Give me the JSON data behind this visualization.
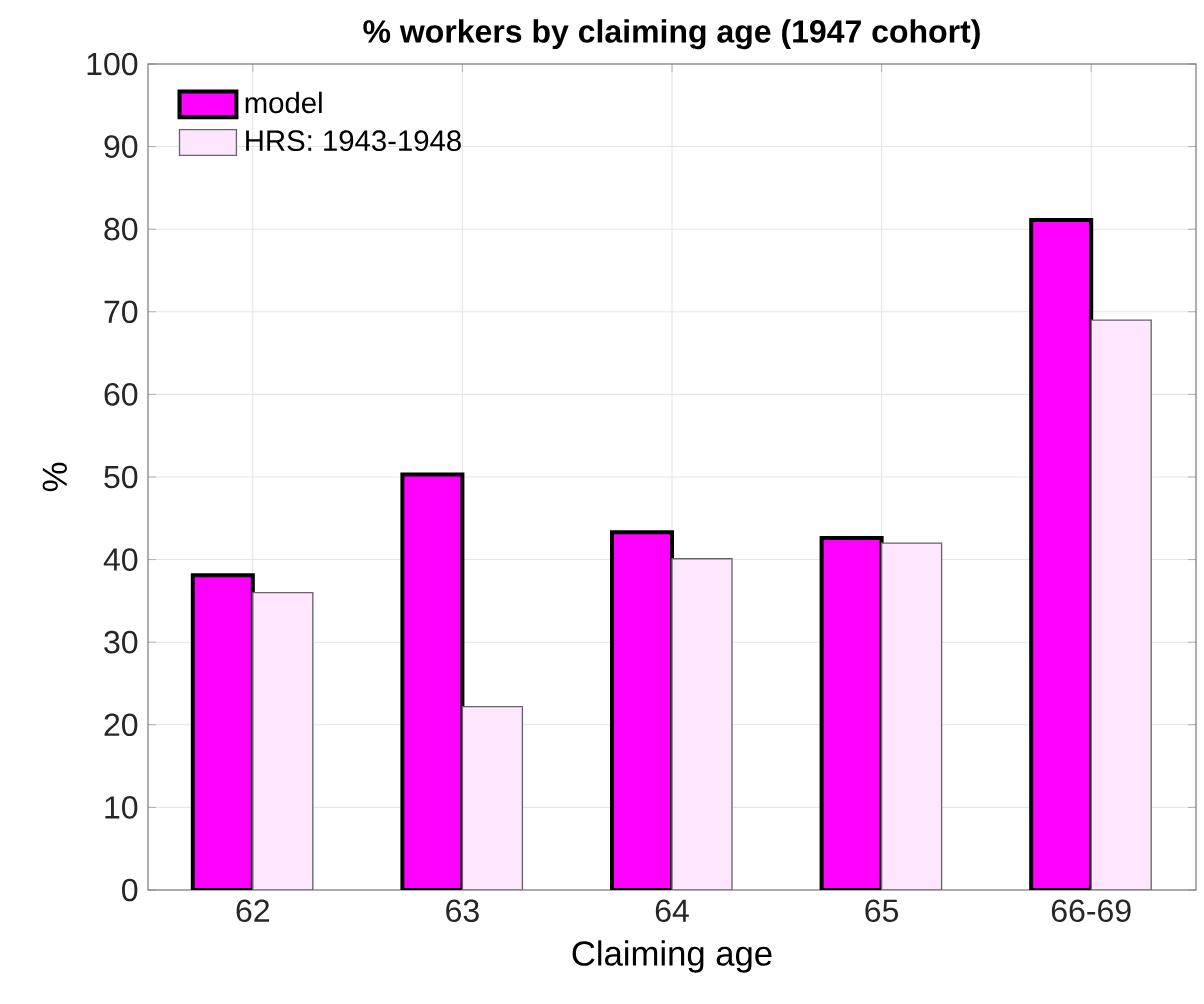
{
  "chart_data": {
    "type": "bar",
    "title": "% workers by claiming age (1947 cohort)",
    "xlabel": "Claiming age",
    "ylabel": "%",
    "categories": [
      "62",
      "63",
      "64",
      "65",
      "66-69"
    ],
    "series": [
      {
        "name": "model",
        "color": "#ff00ff",
        "values": [
          38.1,
          50.3,
          43.3,
          42.6,
          81.1
        ]
      },
      {
        "name": "HRS: 1943-1948",
        "color": "#ffe6ff",
        "values": [
          36.0,
          22.2,
          40.1,
          42.0,
          69.0
        ]
      }
    ],
    "ylim": [
      0,
      100
    ],
    "yticks": [
      0,
      10,
      20,
      30,
      40,
      50,
      60,
      70,
      80,
      90,
      100
    ],
    "grid": true,
    "legend": "top left"
  }
}
